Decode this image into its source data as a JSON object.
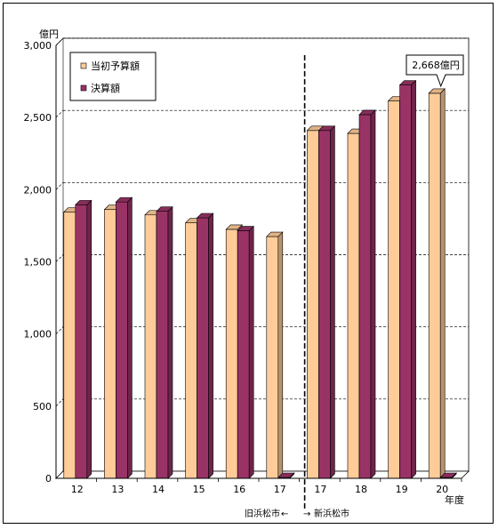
{
  "chart_data": {
    "type": "bar",
    "y_unit": "億円",
    "x_unit": "年度",
    "categories": [
      "12",
      "13",
      "14",
      "15",
      "16",
      "17",
      "17",
      "18",
      "19",
      "20"
    ],
    "series": [
      {
        "name": "当初予算額",
        "color": "#ffcc99",
        "values": [
          1845,
          1862,
          1825,
          1770,
          1725,
          1675,
          2410,
          2390,
          2615,
          2668
        ]
      },
      {
        "name": "決算額",
        "color": "#993366",
        "values": [
          1895,
          1915,
          1850,
          1805,
          1715,
          0,
          2410,
          2520,
          2725,
          0
        ]
      }
    ],
    "ylim": [
      0,
      3000
    ],
    "yticks": [
      0,
      500,
      1000,
      1500,
      2000,
      2500,
      3000
    ],
    "ytick_labels": [
      "0",
      "500",
      "1,000",
      "1,500",
      "2,000",
      "2,500",
      "3,000"
    ],
    "grid": "dashed horizontal",
    "legend": "top-left",
    "divider_after_index": 5,
    "region_labels": {
      "old": "旧浜松市",
      "new": "新浜松市"
    },
    "arrows": {
      "left": "←",
      "right": "→"
    },
    "annotation": {
      "text": "2,668億円",
      "category_index": 9,
      "series_index": 0
    }
  }
}
